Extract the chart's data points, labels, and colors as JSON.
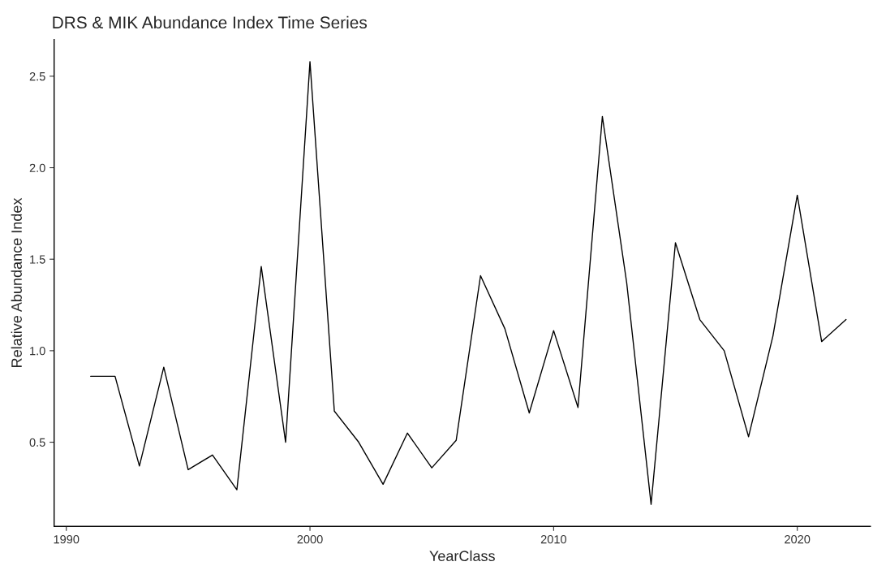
{
  "chart_data": {
    "type": "line",
    "title": "DRS & MIK Abundance Index Time Series",
    "xlabel": "YearClass",
    "ylabel": "Relative Abundance Index",
    "x": [
      1991,
      1992,
      1993,
      1994,
      1995,
      1996,
      1997,
      1998,
      1999,
      2000,
      2001,
      2002,
      2003,
      2004,
      2005,
      2006,
      2007,
      2008,
      2009,
      2010,
      2011,
      2012,
      2013,
      2014,
      2015,
      2016,
      2017,
      2018,
      2019,
      2020,
      2021,
      2022
    ],
    "series": [
      {
        "color": "#000000",
        "values": [
          0.86,
          0.86,
          0.37,
          0.91,
          0.35,
          0.43,
          0.24,
          1.46,
          0.5,
          2.58,
          0.67,
          0.5,
          0.27,
          0.55,
          0.36,
          0.51,
          1.41,
          1.12,
          0.66,
          1.11,
          0.69,
          2.28,
          1.37,
          0.16,
          1.59,
          1.17,
          1.0,
          0.53,
          1.08,
          1.85,
          1.05,
          1.17
        ]
      }
    ],
    "xlim": [
      1989.5,
      2023
    ],
    "xticks": [
      1990,
      2000,
      2010,
      2020
    ],
    "ylim": [
      0.04,
      2.7
    ],
    "yticks": [
      0.5,
      {
        "value": 1,
        "label": "1.0"
      },
      1.5,
      {
        "value": 2,
        "label": "2.0"
      },
      2.5
    ],
    "grid": false,
    "marker": "none",
    "line_style": "solid"
  }
}
